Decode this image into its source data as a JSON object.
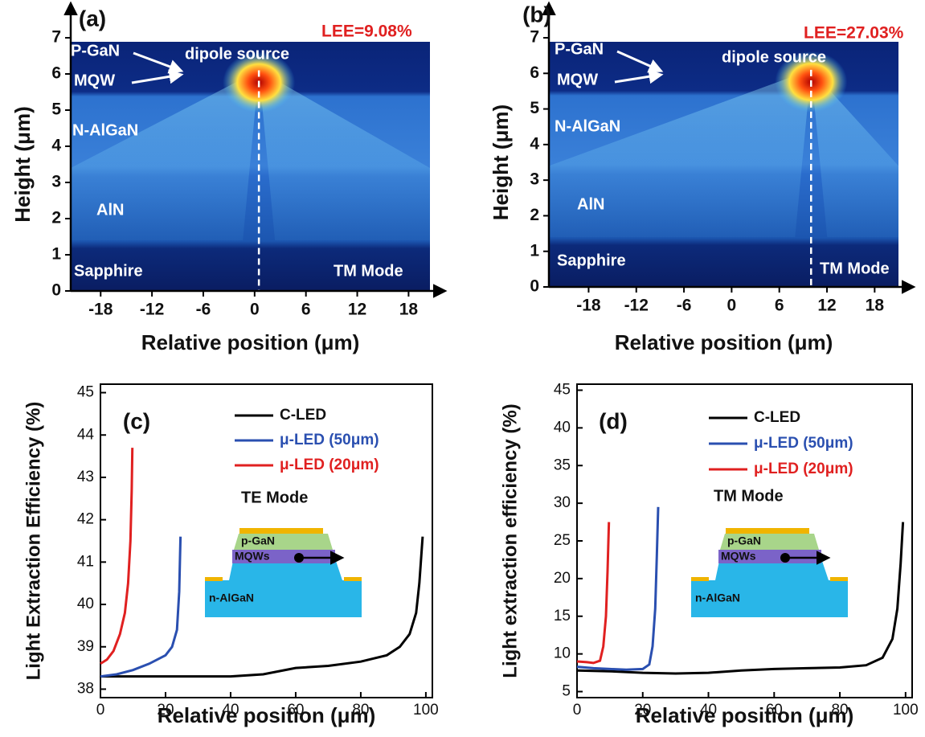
{
  "chart_data": [
    {
      "type": "field-map",
      "title": "(a)",
      "annotation": "LEE=9.08%",
      "xlabel": "Relative position (μm)",
      "ylabel": "Height (μm)",
      "xlim": [
        -21.5,
        20.5
      ],
      "xticks": [
        -18,
        -12,
        -6,
        0,
        6,
        12,
        18
      ],
      "ylim": [
        0,
        7
      ],
      "yticks": [
        0,
        1,
        2,
        3,
        4,
        5,
        6,
        7
      ],
      "layer_labels": [
        "P-GaN",
        "MQW",
        "N-AlGaN",
        "AlN",
        "Sapphire"
      ],
      "source_label": "dipole source",
      "mode": "TM Mode",
      "dipole_position": 0.5
    },
    {
      "type": "field-map",
      "title": "(b)",
      "annotation": "LEE=27.03%",
      "xlabel": "Relative position (μm)",
      "ylabel": "Height (μm)",
      "xlim": [
        -23,
        21
      ],
      "xticks": [
        -18,
        -12,
        -6,
        0,
        6,
        12,
        18
      ],
      "ylim": [
        0,
        7
      ],
      "yticks": [
        0,
        1,
        2,
        3,
        4,
        5,
        6,
        7
      ],
      "layer_labels": [
        "P-GaN",
        "MQW",
        "N-AlGaN",
        "AlN",
        "Sapphire"
      ],
      "source_label": "dipole source",
      "mode": "TM Mode",
      "dipole_position": 10
    },
    {
      "type": "line",
      "title": "(c)",
      "xlabel": "Relative position (μm)",
      "ylabel": "Light Extraction Efficiency (%)",
      "xlim": [
        0,
        102
      ],
      "xticks": [
        0,
        20,
        40,
        60,
        80,
        100
      ],
      "ylim": [
        37.8,
        45.2
      ],
      "yticks": [
        38,
        39,
        40,
        41,
        42,
        43,
        44,
        45
      ],
      "mode": "TE Mode",
      "inset_labels": [
        "p-GaN",
        "MQWs",
        "n-AlGaN"
      ],
      "series": [
        {
          "name": "C-LED",
          "color": "#000000",
          "x": [
            0,
            20,
            40,
            50,
            60,
            70,
            80,
            88,
            92,
            95,
            97,
            98,
            99
          ],
          "values": [
            38.3,
            38.3,
            38.3,
            38.35,
            38.5,
            38.55,
            38.65,
            38.8,
            39.0,
            39.3,
            39.8,
            40.5,
            41.6
          ]
        },
        {
          "name": "μ-LED (50μm)",
          "color": "#2a4fb0",
          "x": [
            0,
            5,
            10,
            15,
            20,
            22,
            23.5,
            24.2,
            24.6
          ],
          "values": [
            38.3,
            38.35,
            38.45,
            38.6,
            38.8,
            39.0,
            39.4,
            40.3,
            41.6
          ]
        },
        {
          "name": "μ-LED (20μm)",
          "color": "#e02020",
          "x": [
            0,
            2,
            4,
            6,
            7.5,
            8.5,
            9.2,
            9.6,
            9.8
          ],
          "values": [
            38.6,
            38.7,
            38.9,
            39.3,
            39.8,
            40.5,
            41.5,
            42.7,
            43.7
          ]
        }
      ]
    },
    {
      "type": "line",
      "title": "(d)",
      "xlabel": "Relative position (μm)",
      "ylabel": "Light extraction efficiency (%)",
      "xlim": [
        0,
        102
      ],
      "xticks": [
        0,
        20,
        40,
        60,
        80,
        100
      ],
      "ylim": [
        4.2,
        45.8
      ],
      "yticks": [
        5,
        10,
        15,
        20,
        25,
        30,
        35,
        40,
        45
      ],
      "mode": "TM Mode",
      "inset_labels": [
        "p-GaN",
        "MQWs",
        "n-AlGaN"
      ],
      "series": [
        {
          "name": "C-LED",
          "color": "#000000",
          "x": [
            0,
            10,
            20,
            30,
            40,
            50,
            60,
            70,
            80,
            88,
            93,
            96,
            97.5,
            98.5,
            99.2
          ],
          "values": [
            7.8,
            7.7,
            7.5,
            7.4,
            7.5,
            7.8,
            8.0,
            8.1,
            8.2,
            8.5,
            9.5,
            12,
            16,
            22,
            27.5
          ]
        },
        {
          "name": "μ-LED (50μm)",
          "color": "#2a4fb0",
          "x": [
            0,
            5,
            10,
            15,
            20,
            22,
            23,
            23.8,
            24.3,
            24.7
          ],
          "values": [
            8.3,
            8.1,
            8.0,
            7.9,
            8.0,
            8.6,
            11,
            16,
            23,
            29.5
          ]
        },
        {
          "name": "μ-LED (20μm)",
          "color": "#e02020",
          "x": [
            0,
            3,
            5,
            7,
            8,
            8.8,
            9.3,
            9.7
          ],
          "values": [
            9.0,
            8.9,
            8.8,
            9.1,
            11,
            15,
            21,
            27.5
          ]
        }
      ]
    }
  ]
}
